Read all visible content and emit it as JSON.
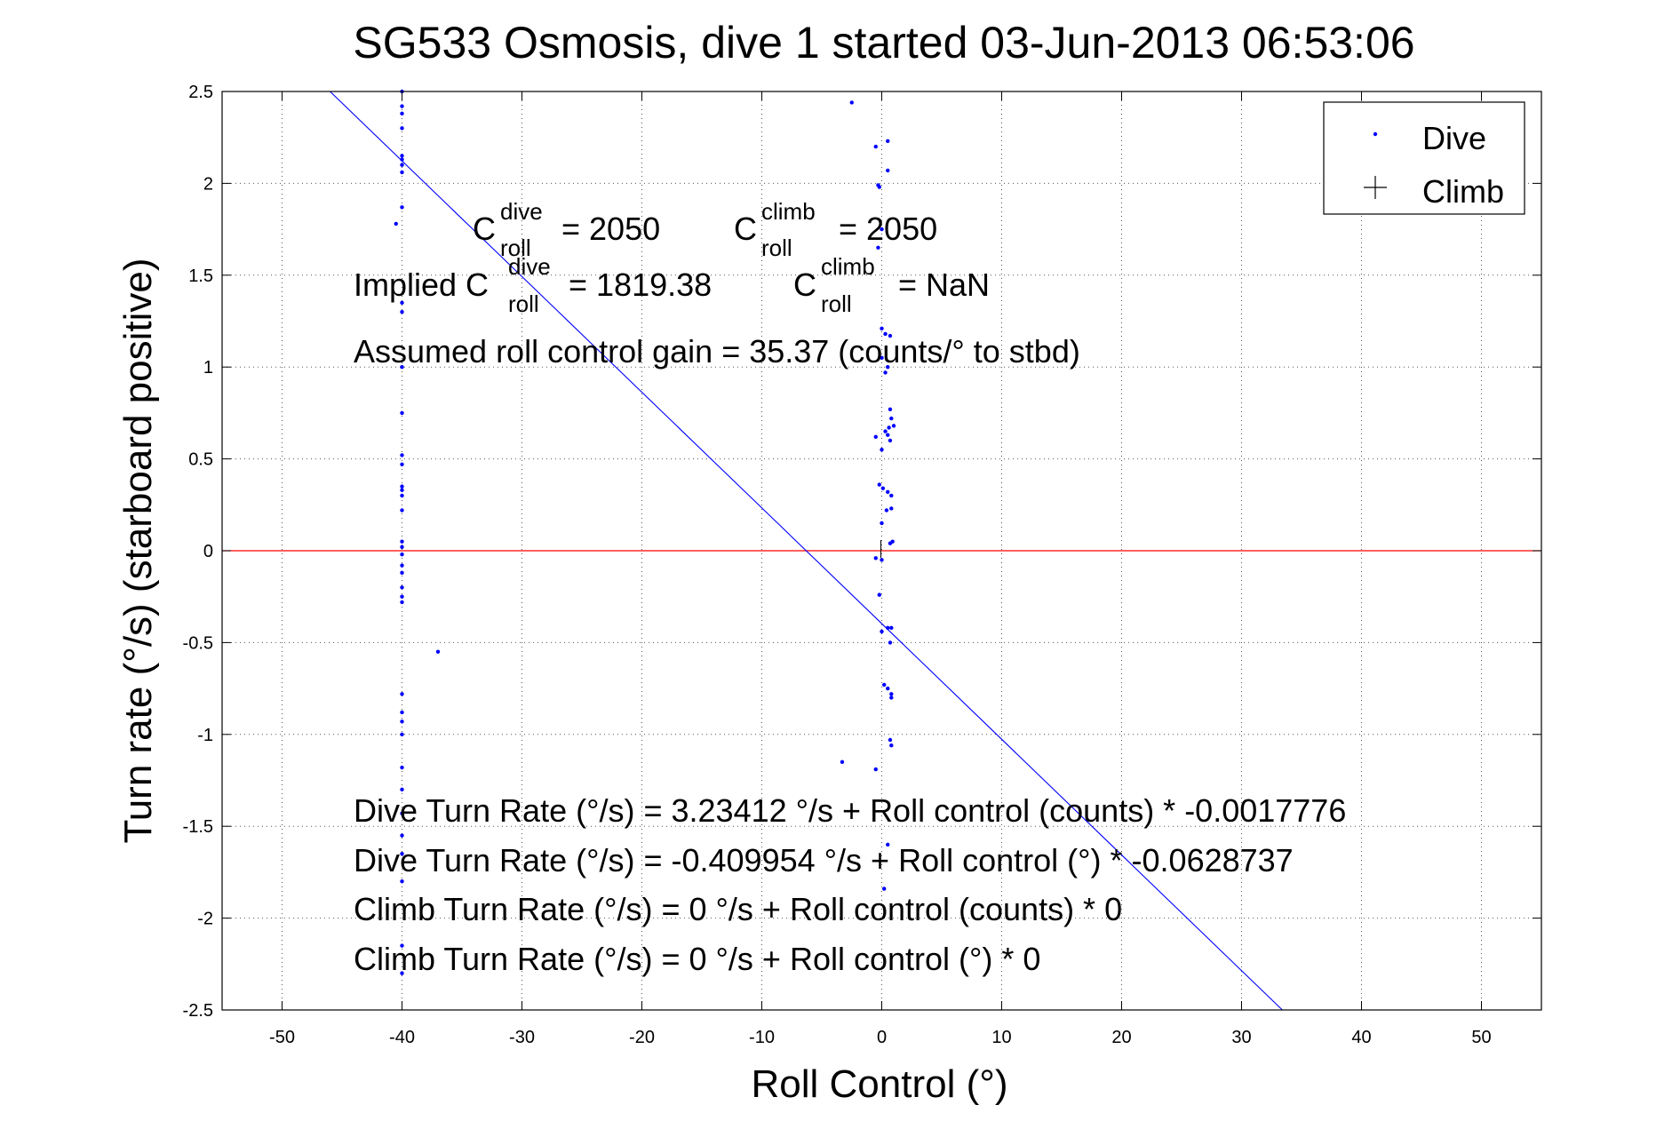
{
  "chart_data": {
    "type": "scatter",
    "title": "SG533 Osmosis, dive 1 started 03-Jun-2013 06:53:06",
    "xlabel": "Roll Control (°)",
    "ylabel": "Turn rate (°/s)  (starboard positive)",
    "xlim": [
      -55,
      55
    ],
    "ylim": [
      -2.5,
      2.5
    ],
    "xticks": [
      "-50",
      "-40",
      "-30",
      "-20",
      "-10",
      "0",
      "10",
      "20",
      "30",
      "40",
      "50"
    ],
    "yticks": [
      "2.5",
      "2",
      "1.5",
      "1",
      "0.5",
      "0",
      "-0.5",
      "-1",
      "-1.5",
      "-2",
      "-2.5"
    ],
    "xtick_values": [
      -50,
      -40,
      -30,
      -20,
      -10,
      0,
      10,
      20,
      30,
      40,
      50
    ],
    "ytick_values": [
      2.5,
      2,
      1.5,
      1,
      0.5,
      0,
      -0.5,
      -1,
      -1.5,
      -2,
      -2.5
    ],
    "grid": true,
    "legend": {
      "placement": "top-right",
      "entries": [
        {
          "label": "Dive",
          "marker": "dot",
          "color": "#0000ff"
        },
        {
          "label": "Climb",
          "marker": "plus",
          "color": "#000000"
        }
      ]
    },
    "colors": {
      "dive": "#0000ff",
      "zero_line": "#ff0000",
      "fit_line": "#0000ff",
      "axes": "#000000",
      "grid": "#555555"
    },
    "series": [
      {
        "name": "Dive",
        "points": [
          [
            -40,
            2.5
          ],
          [
            -40,
            2.42
          ],
          [
            -40,
            2.38
          ],
          [
            -40,
            2.3
          ],
          [
            -40,
            2.15
          ],
          [
            -40,
            2.13
          ],
          [
            -40,
            2.1
          ],
          [
            -40,
            2.06
          ],
          [
            -40,
            1.87
          ],
          [
            -40.5,
            1.78
          ],
          [
            -40,
            1.35
          ],
          [
            -40,
            1.3
          ],
          [
            -40,
            1.0
          ],
          [
            -40,
            0.75
          ],
          [
            -40,
            0.52
          ],
          [
            -40,
            0.47
          ],
          [
            -40,
            0.35
          ],
          [
            -40,
            0.33
          ],
          [
            -40,
            0.3
          ],
          [
            -40,
            0.22
          ],
          [
            -40,
            0.05
          ],
          [
            -40,
            0.02
          ],
          [
            -40,
            -0.02
          ],
          [
            -40,
            -0.08
          ],
          [
            -40,
            -0.12
          ],
          [
            -40,
            -0.2
          ],
          [
            -40,
            -0.25
          ],
          [
            -40,
            -0.28
          ],
          [
            -37,
            -0.55
          ],
          [
            -40,
            -0.78
          ],
          [
            -40,
            -0.88
          ],
          [
            -40,
            -0.93
          ],
          [
            -40,
            -1.0
          ],
          [
            -40,
            -1.18
          ],
          [
            -40,
            -1.3
          ],
          [
            -40,
            -1.43
          ],
          [
            -40,
            -1.55
          ],
          [
            -40,
            -1.65
          ],
          [
            -40,
            -1.8
          ],
          [
            -40,
            -2.15
          ],
          [
            -40,
            -2.3
          ],
          [
            -2.5,
            2.44
          ],
          [
            -0.5,
            2.2
          ],
          [
            0.5,
            2.23
          ],
          [
            -0.3,
            1.99
          ],
          [
            -0.2,
            1.98
          ],
          [
            0.5,
            2.07
          ],
          [
            0,
            1.75
          ],
          [
            -0.3,
            1.65
          ],
          [
            0,
            1.21
          ],
          [
            0.3,
            1.18
          ],
          [
            0.7,
            1.17
          ],
          [
            0,
            1.05
          ],
          [
            0.5,
            1.0
          ],
          [
            0.3,
            0.97
          ],
          [
            0.7,
            0.77
          ],
          [
            0.8,
            0.72
          ],
          [
            0.6,
            0.67
          ],
          [
            1.0,
            0.68
          ],
          [
            0.3,
            0.65
          ],
          [
            -0.5,
            0.62
          ],
          [
            0.5,
            0.63
          ],
          [
            0.7,
            0.6
          ],
          [
            0,
            0.55
          ],
          [
            -0.2,
            0.36
          ],
          [
            0.1,
            0.34
          ],
          [
            0.5,
            0.32
          ],
          [
            0.8,
            0.3
          ],
          [
            0.4,
            0.22
          ],
          [
            0.8,
            0.23
          ],
          [
            0,
            0.15
          ],
          [
            0.9,
            0.05
          ],
          [
            0.7,
            0.04
          ],
          [
            -0.5,
            -0.04
          ],
          [
            0,
            -0.05
          ],
          [
            -0.2,
            -0.24
          ],
          [
            0,
            -0.44
          ],
          [
            0.5,
            -0.42
          ],
          [
            0.8,
            -0.42
          ],
          [
            0.7,
            -0.5
          ],
          [
            0.2,
            -0.73
          ],
          [
            0.5,
            -0.75
          ],
          [
            0.8,
            -0.78
          ],
          [
            0.8,
            -0.8
          ],
          [
            0.7,
            -1.03
          ],
          [
            0.8,
            -1.06
          ],
          [
            -3.3,
            -1.15
          ],
          [
            -0.5,
            -1.19
          ],
          [
            0.5,
            -1.6
          ],
          [
            0.2,
            -1.84
          ]
        ]
      },
      {
        "name": "Climb",
        "points": [
          [
            0,
            0
          ]
        ]
      }
    ],
    "fit_line": {
      "x": [
        -46,
        33.4
      ],
      "y": [
        2.5,
        -2.5
      ]
    },
    "zero_line": {
      "y": 0
    },
    "annotations": {
      "c_dive_base": "C",
      "c_dive_sup": "dive",
      "c_dive_sub": "roll",
      "c_dive_val": "= 2050",
      "c_climb_base": "C",
      "c_climb_sup": "climb",
      "c_climb_sub": "roll",
      "c_climb_val": "= 2050",
      "implied_prefix": "Implied C",
      "implied_dive_sup": "dive",
      "implied_dive_sub": "roll",
      "implied_dive_val": "= 1819.38",
      "implied_climb_base": "C",
      "implied_climb_sup": "climb",
      "implied_climb_sub": "roll",
      "implied_climb_val": "= NaN",
      "gain": "Assumed roll control gain = 35.37 (counts/° to stbd)",
      "eq1": "Dive Turn Rate (°/s) = 3.23412 °/s + Roll control (counts) * -0.0017776",
      "eq2": "Dive Turn Rate (°/s) = -0.409954 °/s + Roll control (°) * -0.0628737",
      "eq3": "Climb Turn Rate (°/s) = 0 °/s + Roll control (counts) * 0",
      "eq4": "Climb Turn Rate (°/s) = 0 °/s + Roll control (°) * 0"
    }
  }
}
